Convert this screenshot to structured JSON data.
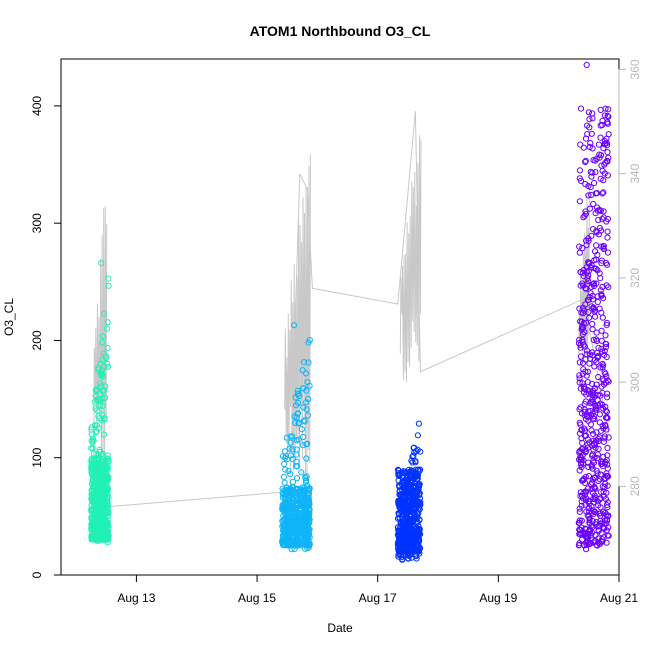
{
  "chart_data": {
    "type": "scatter",
    "title": "ATOM1 Northbound O3_CL",
    "xlabel": "Date",
    "ylabel": "O3_CL",
    "x_axis": {
      "type": "date",
      "range": [
        "2016-08-11T18:00",
        "2016-08-21T00:00"
      ],
      "ticks": [
        {
          "x": "2016-08-13",
          "label": "Aug 13"
        },
        {
          "x": "2016-08-15",
          "label": "Aug 15"
        },
        {
          "x": "2016-08-17",
          "label": "Aug 17"
        },
        {
          "x": "2016-08-19",
          "label": "Aug 19"
        },
        {
          "x": "2016-08-21",
          "label": "Aug 21"
        }
      ]
    },
    "y_axis_left": {
      "label": "O3_CL",
      "range": [
        0,
        440
      ],
      "ticks": [
        0,
        100,
        200,
        300,
        400
      ]
    },
    "y_axis_right": {
      "range": [
        263,
        362
      ],
      "ticks": [
        280,
        300,
        320,
        340,
        360
      ],
      "color": "#b8b8b8"
    },
    "grid": false,
    "legend": "none",
    "series": [
      {
        "axis": "left",
        "color": "#21f0b6",
        "marker": "open-circle",
        "clusters": [
          {
            "x_start": "2016-08-12T06:00",
            "x_end": "2016-08-12T13:00",
            "y_min": 28,
            "y_max": 266,
            "bulk_min": 30,
            "bulk_max": 100
          }
        ]
      },
      {
        "axis": "left",
        "color": "#0fb4f8",
        "marker": "open-circle",
        "clusters": [
          {
            "x_start": "2016-08-15T10:00",
            "x_end": "2016-08-15T21:00",
            "y_min": 22,
            "y_max": 213,
            "bulk_min": 25,
            "bulk_max": 75
          }
        ]
      },
      {
        "axis": "left",
        "color": "#0033ff",
        "marker": "open-circle",
        "clusters": [
          {
            "x_start": "2016-08-17T08:00",
            "x_end": "2016-08-17T17:00",
            "y_min": 13,
            "y_max": 129,
            "bulk_min": 20,
            "bulk_max": 90
          }
        ]
      },
      {
        "axis": "left",
        "color": "#6a00ff",
        "marker": "open-circle",
        "clusters": [
          {
            "x_start": "2016-08-20T08:00",
            "x_end": "2016-08-20T20:00",
            "y_min": 22,
            "y_max": 435,
            "bulk_min": 25,
            "bulk_max": 400
          }
        ]
      },
      {
        "axis": "right",
        "type": "line",
        "color": "#c8c8c8",
        "points": [
          {
            "x": "2016-08-12T10:00",
            "y": 276
          },
          {
            "x": "2016-08-15T13:00",
            "y": 279
          },
          {
            "x": "2016-08-15T17:00",
            "y": 340
          },
          {
            "x": "2016-08-15T20:00",
            "y": 337
          },
          {
            "x": "2016-08-15T22:00",
            "y": 318
          },
          {
            "x": "2016-08-17T08:00",
            "y": 315
          },
          {
            "x": "2016-08-17T15:00",
            "y": 352
          },
          {
            "x": "2016-08-17T17:00",
            "y": 302
          },
          {
            "x": "2016-08-20T10:00",
            "y": 316
          },
          {
            "x": "2016-08-20T20:00",
            "y": 290
          }
        ],
        "spikes": [
          {
            "x_start": "2016-08-12T07:00",
            "x_end": "2016-08-12T12:00",
            "y_min": 280,
            "y_max": 346
          },
          {
            "x_start": "2016-08-15T11:00",
            "x_end": "2016-08-15T21:00",
            "y_min": 280,
            "y_max": 350
          },
          {
            "x_start": "2016-08-17T09:00",
            "x_end": "2016-08-17T17:00",
            "y_min": 300,
            "y_max": 355
          },
          {
            "x_start": "2016-08-20T08:00",
            "x_end": "2016-08-20T12:00",
            "y_min": 300,
            "y_max": 342
          }
        ]
      }
    ]
  }
}
